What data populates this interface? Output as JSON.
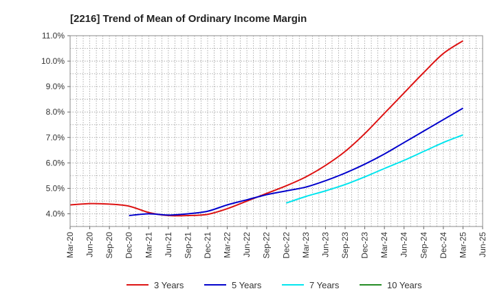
{
  "chart_data": {
    "type": "line",
    "title": "[2216]  Trend of Mean of Ordinary Income Margin",
    "xlabel": "",
    "ylabel": "",
    "x_tick_labels": [
      "Mar-20",
      "Jun-20",
      "Sep-20",
      "Dec-20",
      "Mar-21",
      "Jun-21",
      "Sep-21",
      "Dec-21",
      "Mar-22",
      "Jun-22",
      "Sep-22",
      "Dec-22",
      "Mar-23",
      "Jun-23",
      "Sep-23",
      "Dec-23",
      "Mar-24",
      "Jun-24",
      "Sep-24",
      "Dec-24",
      "Mar-25",
      "Jun-25"
    ],
    "y_tick_labels": [
      "4.0%",
      "5.0%",
      "6.0%",
      "7.0%",
      "8.0%",
      "9.0%",
      "10.0%",
      "11.0%"
    ],
    "ylim": [
      3.5,
      11.0
    ],
    "grid": true,
    "legend_position": "bottom",
    "series": [
      {
        "name": "3 Years",
        "color": "#dd1111",
        "values": [
          4.35,
          4.4,
          4.38,
          4.3,
          4.05,
          3.93,
          3.93,
          3.98,
          4.2,
          4.5,
          4.8,
          5.1,
          5.45,
          5.9,
          6.45,
          7.15,
          7.95,
          8.75,
          9.55,
          10.3,
          10.8
        ]
      },
      {
        "name": "5 Years",
        "color": "#0000cc",
        "values": [
          null,
          null,
          null,
          3.93,
          4.0,
          3.95,
          4.0,
          4.1,
          4.35,
          4.55,
          4.75,
          4.9,
          5.05,
          5.3,
          5.6,
          5.95,
          6.35,
          6.8,
          7.25,
          7.7,
          8.15
        ]
      },
      {
        "name": "7 Years",
        "color": "#00e5ee",
        "values": [
          null,
          null,
          null,
          null,
          null,
          null,
          null,
          null,
          null,
          null,
          null,
          4.42,
          4.68,
          4.9,
          5.15,
          5.45,
          5.78,
          6.1,
          6.45,
          6.8,
          7.1
        ]
      },
      {
        "name": "10 Years",
        "color": "#228b22",
        "values": []
      }
    ]
  }
}
